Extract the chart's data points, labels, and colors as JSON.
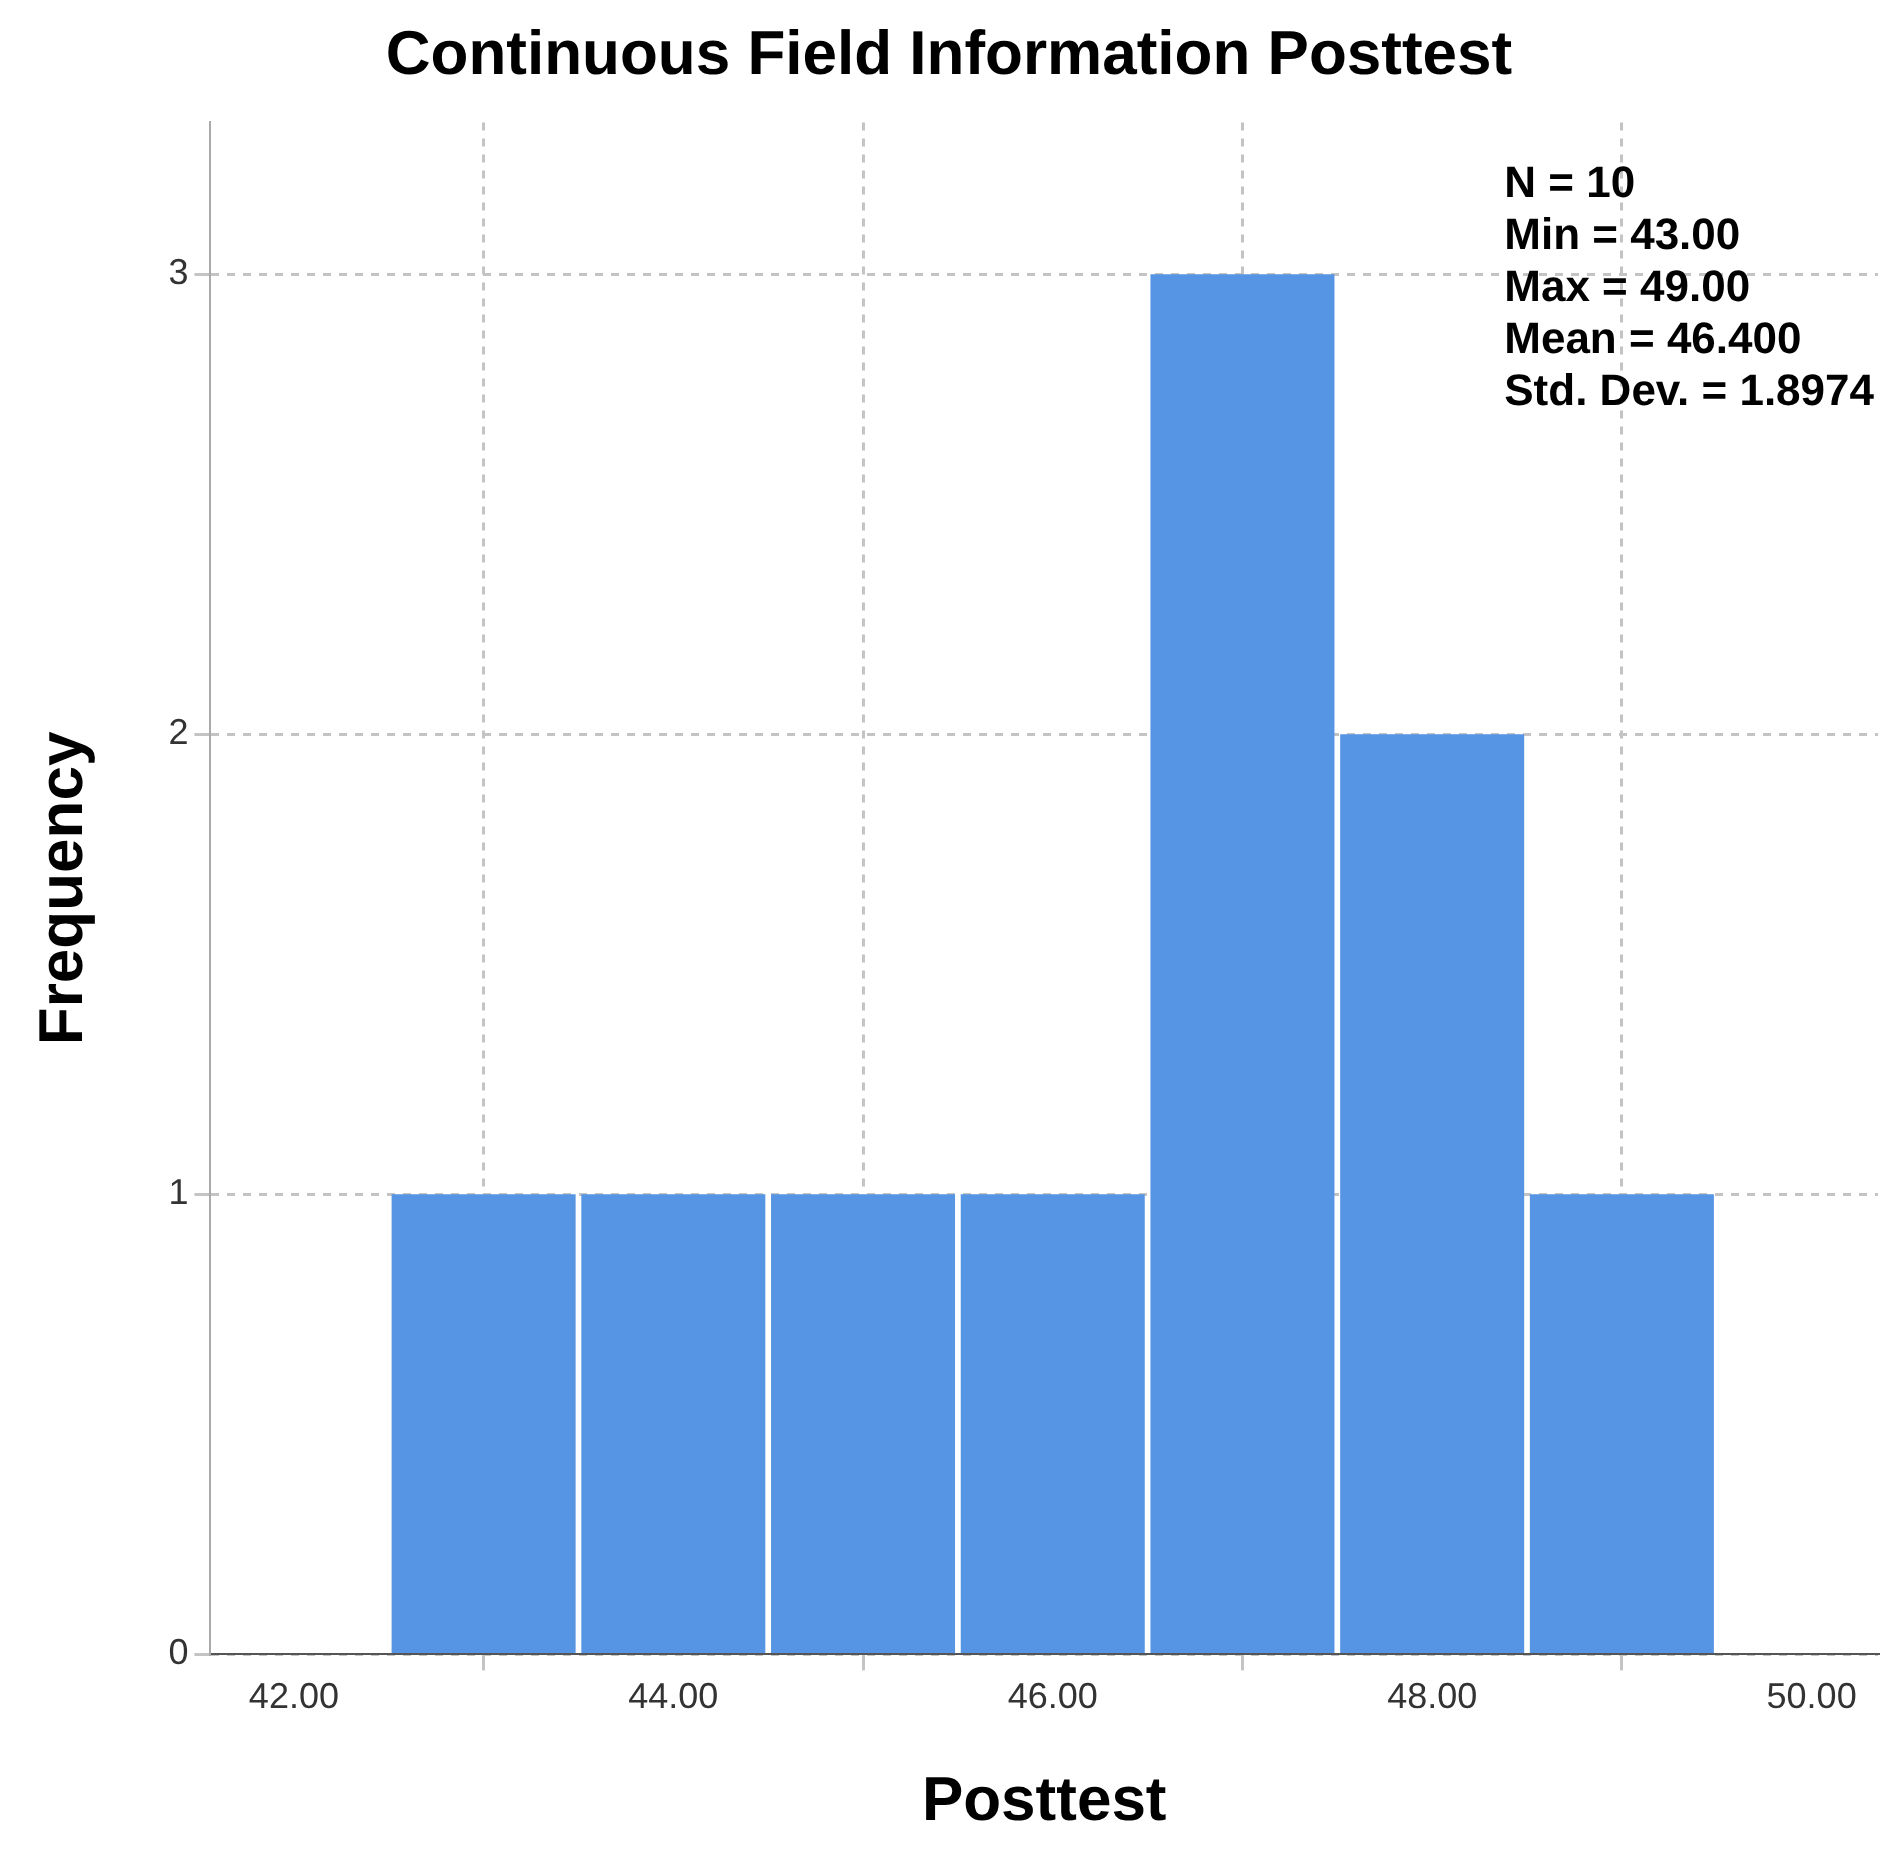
{
  "chart_data": {
    "type": "histogram",
    "title": "Continuous Field Information Posttest",
    "xlabel": "Posttest",
    "ylabel": "Frequency",
    "bins": [
      42.5,
      43.5,
      44.5,
      45.5,
      46.5,
      47.5,
      48.5,
      49.5
    ],
    "values": [
      1,
      1,
      1,
      1,
      3,
      2,
      1
    ],
    "color": "#5595e3",
    "xlim": [
      41.56,
      50.35
    ],
    "xticks": [
      {
        "value": 42,
        "label": "42.00"
      },
      {
        "value": 44,
        "label": "44.00"
      },
      {
        "value": 46,
        "label": "46.00"
      },
      {
        "value": 48,
        "label": "48.00"
      },
      {
        "value": 50,
        "label": "50.00"
      }
    ],
    "ylim": [
      0,
      3.33
    ],
    "yticks": [
      0,
      1,
      2,
      3
    ],
    "grid": true,
    "annotations": [
      "N = 10",
      "Min = 43.00",
      "Max = 49.00",
      "Mean = 46.400",
      "Std. Dev. = 1.8974"
    ]
  }
}
